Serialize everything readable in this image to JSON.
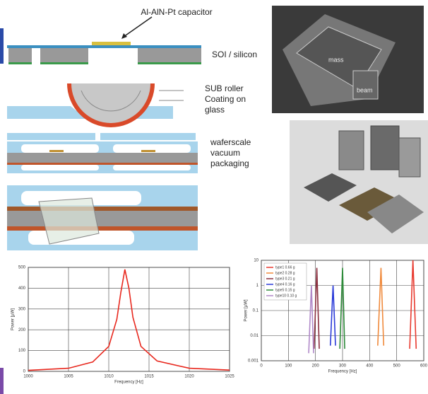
{
  "diagram": {
    "capacitor_label": "Al-AlN-Pt capacitor",
    "step1_label": "SOI / silicon",
    "step2_label": "SUB roller\nCoating on\nglass",
    "step3_label": "waferscale\nvacuum\npackaging",
    "sem_labels": [
      "mass",
      "beam"
    ]
  },
  "chart_data": [
    {
      "type": "line",
      "xlabel": "Frequency [Hz]",
      "ylabel": "Power [µW]",
      "xlim": [
        1000,
        1025
      ],
      "xticks": [
        1000,
        1005,
        1010,
        1015,
        1020,
        1025
      ],
      "ylim": [
        0,
        500
      ],
      "yticks": [
        0,
        100,
        200,
        300,
        400,
        500
      ],
      "grid": true,
      "series": [
        {
          "color": "#e8281e",
          "x": [
            1000,
            1005,
            1008,
            1010,
            1011,
            1011.5,
            1012,
            1012.5,
            1013,
            1014,
            1016,
            1020,
            1025
          ],
          "values": [
            5,
            15,
            45,
            120,
            250,
            380,
            490,
            400,
            260,
            120,
            50,
            15,
            6
          ]
        }
      ]
    },
    {
      "type": "line",
      "xlabel": "Frequency [Hz]",
      "ylabel": "Power [µW]",
      "log_y": true,
      "xlim": [
        0,
        600
      ],
      "xticks": [
        0,
        100,
        200,
        300,
        400,
        500,
        600
      ],
      "ylim": [
        0.001,
        10
      ],
      "yticks": [
        0.001,
        0.01,
        0.1,
        1,
        10
      ],
      "grid": true,
      "legend": "upper left",
      "series": [
        {
          "name": "type1 0.66 g",
          "color": "#e8392e",
          "x": [
            548,
            560,
            572
          ],
          "values": [
            0.003,
            10,
            0.003
          ]
        },
        {
          "name": "type2 0.28 g",
          "color": "#f08a3c",
          "x": [
            430,
            442,
            452
          ],
          "values": [
            0.004,
            5,
            0.004
          ]
        },
        {
          "name": "type3 0.21 g",
          "color": "#8b2f3f",
          "x": [
            195,
            205,
            214
          ],
          "values": [
            0.003,
            5,
            0.003
          ]
        },
        {
          "name": "type4 0.16 g",
          "color": "#2a3ad8",
          "x": [
            255,
            265,
            274
          ],
          "values": [
            0.004,
            1,
            0.004
          ]
        },
        {
          "name": "type5 0.15 g",
          "color": "#2e8b3a",
          "x": [
            290,
            300,
            308
          ],
          "values": [
            0.003,
            5,
            0.003
          ]
        },
        {
          "name": "type10 0.10 g",
          "color": "#b088c8",
          "x": [
            175,
            185,
            193
          ],
          "values": [
            0.002,
            1,
            0.002
          ]
        }
      ]
    }
  ]
}
